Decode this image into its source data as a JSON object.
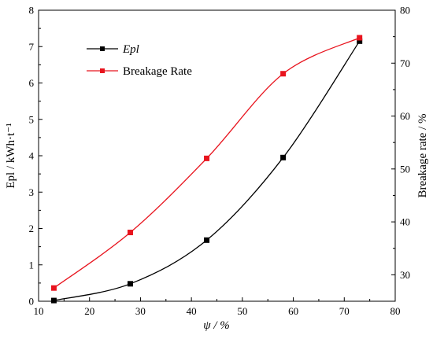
{
  "chart_data": {
    "type": "line",
    "xlabel": "ψ / %",
    "ylabel_left": "Epl / kWh·t⁻¹",
    "ylabel_right": "Breakage rate / %",
    "xlim": [
      10,
      80
    ],
    "ylim_left": [
      0,
      8
    ],
    "ylim_right": [
      25,
      80
    ],
    "x_ticks": [
      10,
      20,
      30,
      40,
      50,
      60,
      70,
      80
    ],
    "y_left_ticks": [
      0,
      1,
      2,
      3,
      4,
      5,
      6,
      7,
      8
    ],
    "y_right_ticks": [
      30,
      40,
      50,
      60,
      70,
      80
    ],
    "grid": false,
    "legend_position": "top-left",
    "x": [
      13,
      28,
      43,
      58,
      73
    ],
    "series": [
      {
        "name": "Epl",
        "axis": "left",
        "color": "#000000",
        "values": [
          0.02,
          0.48,
          1.68,
          3.95,
          7.15
        ]
      },
      {
        "name": "Breakage Rate",
        "axis": "right",
        "color": "#e8141e",
        "values": [
          27.5,
          38.0,
          52.0,
          68.0,
          74.8
        ]
      }
    ]
  }
}
